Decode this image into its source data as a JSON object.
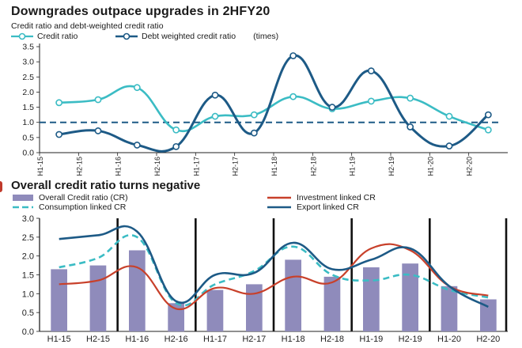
{
  "colors": {
    "light_teal": "#3bbcc4",
    "dark_blue": "#1d5a86",
    "red": "#c8402a",
    "bar": "#8f8bbb",
    "axis": "#222222"
  },
  "chart_data": [
    {
      "type": "line",
      "title": "Downgrades outpace upgrades in 2HFY20",
      "subtitle": "Credit ratio and debt-weighted credit ratio",
      "unit_note": "(times)",
      "categories": [
        "H1-15",
        "H2-15",
        "H1-16",
        "H2-16",
        "H1-17",
        "H2-17",
        "H1-18",
        "H2-18",
        "H1-19",
        "H2-19",
        "H1-20",
        "H2-20"
      ],
      "series": [
        {
          "name": "Credit ratio",
          "values": [
            1.65,
            1.75,
            2.15,
            0.75,
            1.2,
            1.25,
            1.85,
            1.45,
            1.7,
            1.8,
            1.2,
            0.75
          ]
        },
        {
          "name": "Debt weighted credit ratio",
          "values": [
            0.6,
            0.72,
            0.25,
            0.2,
            1.9,
            0.65,
            3.2,
            1.5,
            2.7,
            0.85,
            0.22,
            1.25
          ]
        }
      ],
      "reference_line": 1.0,
      "y_ticks": [
        "0.0",
        "0.5",
        "1.0",
        "1.5",
        "2.0",
        "2.5",
        "3.0",
        "3.5"
      ],
      "ylim": [
        0,
        3.5
      ]
    },
    {
      "type": "bar+line",
      "title": "Overall credit ratio turns negative",
      "categories": [
        "H1-15",
        "H2-15",
        "H1-16",
        "H2-16",
        "H1-17",
        "H2-17",
        "H1-18",
        "H2-18",
        "H1-19",
        "H2-19",
        "H1-20",
        "H2-20"
      ],
      "bars": {
        "name": "Overall Credit ratio (CR)",
        "values": [
          1.65,
          1.75,
          2.15,
          0.75,
          1.1,
          1.25,
          1.9,
          1.45,
          1.7,
          1.8,
          1.2,
          0.85
        ]
      },
      "series": [
        {
          "name": "Consumption linked CR",
          "values": [
            1.7,
            1.95,
            2.5,
            0.75,
            1.25,
            1.6,
            2.25,
            1.5,
            1.35,
            1.5,
            1.1,
            0.9
          ]
        },
        {
          "name": "Investment linked CR",
          "values": [
            1.25,
            1.35,
            1.7,
            0.6,
            1.15,
            1.0,
            1.45,
            1.3,
            2.2,
            2.15,
            1.2,
            0.95
          ]
        },
        {
          "name": "Export linked CR",
          "values": [
            2.45,
            2.55,
            2.65,
            0.8,
            1.5,
            1.55,
            2.35,
            1.65,
            1.9,
            2.2,
            1.2,
            0.65
          ]
        }
      ],
      "y_ticks": [
        "0.0",
        "0.5",
        "1.0",
        "1.5",
        "2.0",
        "2.5",
        "3.0"
      ],
      "ylim": [
        0,
        3
      ]
    }
  ]
}
